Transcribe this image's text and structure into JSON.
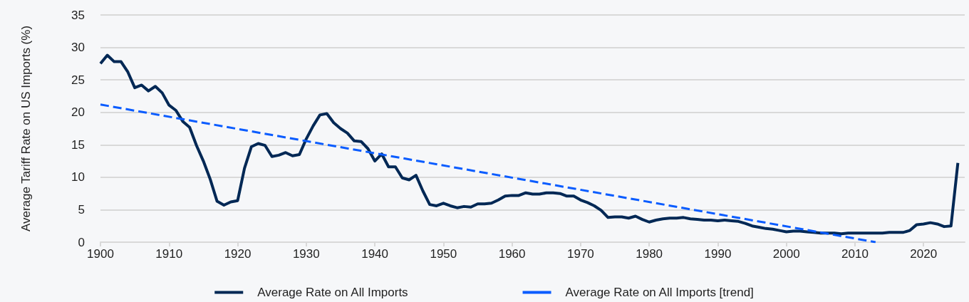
{
  "chart_data": {
    "type": "line",
    "ylabel": "Average Tariff Rate on US Imports (%)",
    "xlim": [
      1900,
      2026
    ],
    "xticks": [
      1900,
      1910,
      1920,
      1930,
      1940,
      1950,
      1960,
      1970,
      1980,
      1990,
      2000,
      2010,
      2020
    ],
    "ylim": [
      0,
      35
    ],
    "yticks": [
      0,
      5,
      10,
      15,
      20,
      25,
      30,
      35
    ],
    "grid": "y",
    "legend": "bottom",
    "marker": "none",
    "series": [
      {
        "name": "Average Rate on All Imports",
        "color": "#002855",
        "line_style": "solid",
        "x": [
          1900,
          1901,
          1902,
          1903,
          1904,
          1905,
          1906,
          1907,
          1908,
          1909,
          1910,
          1911,
          1912,
          1913,
          1914,
          1915,
          1916,
          1917,
          1918,
          1919,
          1920,
          1921,
          1922,
          1923,
          1924,
          1925,
          1926,
          1927,
          1928,
          1929,
          1930,
          1931,
          1932,
          1933,
          1934,
          1935,
          1936,
          1937,
          1938,
          1939,
          1940,
          1941,
          1942,
          1943,
          1944,
          1945,
          1946,
          1947,
          1948,
          1949,
          1950,
          1951,
          1952,
          1953,
          1954,
          1955,
          1956,
          1957,
          1958,
          1959,
          1960,
          1961,
          1962,
          1963,
          1964,
          1965,
          1966,
          1967,
          1968,
          1969,
          1970,
          1971,
          1972,
          1973,
          1974,
          1975,
          1976,
          1977,
          1978,
          1979,
          1980,
          1981,
          1982,
          1983,
          1984,
          1985,
          1986,
          1987,
          1988,
          1989,
          1990,
          1991,
          1992,
          1993,
          1994,
          1995,
          1996,
          1997,
          1998,
          1999,
          2000,
          2001,
          2002,
          2003,
          2004,
          2005,
          2006,
          2007,
          2008,
          2009,
          2010,
          2011,
          2012,
          2013,
          2014,
          2015,
          2016,
          2017,
          2018,
          2019,
          2020,
          2021,
          2022,
          2023,
          2024,
          2025
        ],
        "values": [
          27.5,
          28.8,
          27.8,
          27.8,
          26.2,
          23.8,
          24.2,
          23.3,
          24.0,
          23.0,
          21.1,
          20.3,
          18.6,
          17.7,
          14.9,
          12.5,
          9.7,
          6.3,
          5.7,
          6.2,
          6.4,
          11.4,
          14.7,
          15.2,
          14.9,
          13.2,
          13.4,
          13.8,
          13.3,
          13.5,
          15.9,
          17.9,
          19.6,
          19.8,
          18.4,
          17.5,
          16.8,
          15.6,
          15.5,
          14.4,
          12.5,
          13.6,
          11.6,
          11.6,
          9.9,
          9.6,
          10.3,
          7.9,
          5.8,
          5.6,
          6.0,
          5.6,
          5.3,
          5.5,
          5.4,
          5.9,
          5.9,
          6.0,
          6.5,
          7.1,
          7.2,
          7.2,
          7.6,
          7.4,
          7.4,
          7.6,
          7.6,
          7.5,
          7.1,
          7.1,
          6.5,
          6.1,
          5.6,
          4.9,
          3.8,
          3.9,
          3.9,
          3.7,
          4.0,
          3.5,
          3.1,
          3.4,
          3.6,
          3.7,
          3.7,
          3.8,
          3.6,
          3.5,
          3.4,
          3.4,
          3.3,
          3.4,
          3.3,
          3.2,
          2.9,
          2.5,
          2.3,
          2.1,
          2.0,
          1.8,
          1.6,
          1.7,
          1.7,
          1.6,
          1.5,
          1.4,
          1.4,
          1.4,
          1.3,
          1.4,
          1.4,
          1.4,
          1.4,
          1.4,
          1.4,
          1.5,
          1.5,
          1.5,
          1.8,
          2.7,
          2.8,
          3.0,
          2.8,
          2.4,
          2.5,
          12.2
        ]
      },
      {
        "name": "Average Rate on All Imports [trend]",
        "color": "#0a5cff",
        "line_style": "dashed",
        "x": [
          1900,
          2013
        ],
        "values": [
          21.2,
          0
        ]
      }
    ]
  }
}
